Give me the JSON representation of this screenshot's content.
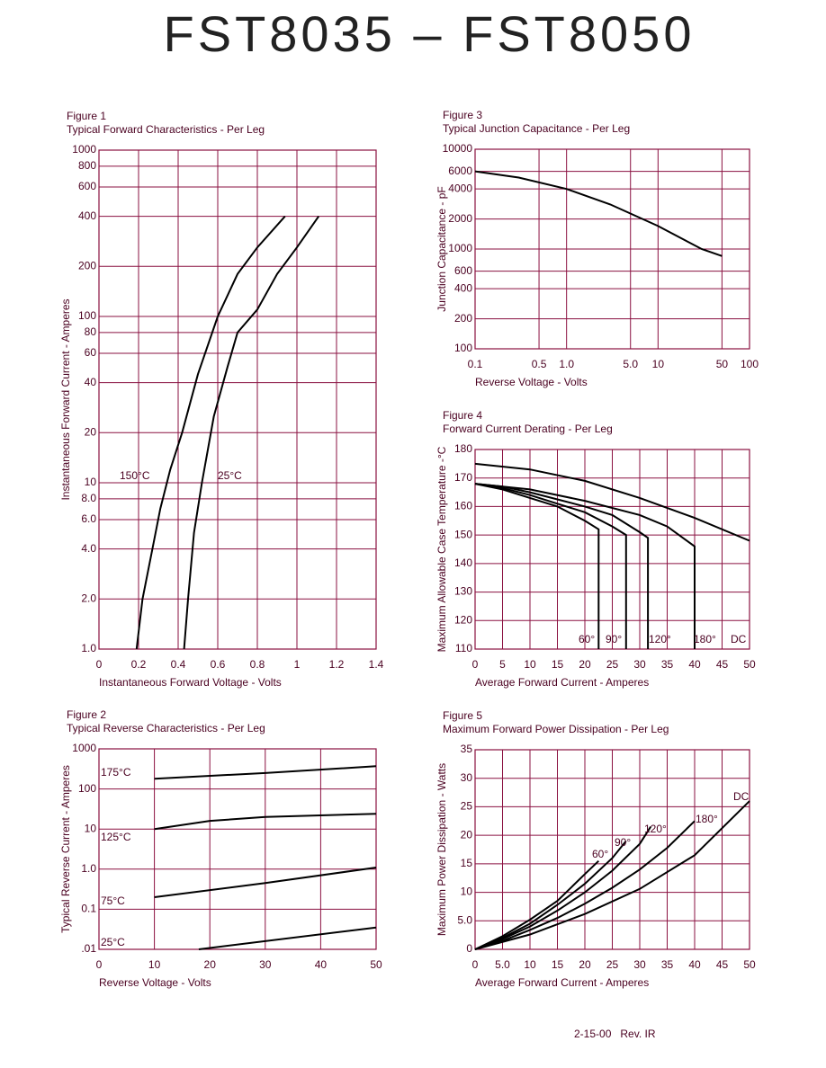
{
  "header": {
    "title": "FST8035 – FST8050"
  },
  "footer": {
    "text": "2-15-00   Rev. IR"
  },
  "chart_data": [
    {
      "type": "line",
      "title": "Figure 1",
      "subtitle": "Typical Forward Characteristics - Per Leg",
      "xlabel": "Instantaneous Forward Voltage - Volts",
      "ylabel": "Instantaneous Forward Current - Amperes",
      "xlim": [
        0,
        1.4
      ],
      "xticks": [
        0,
        0.2,
        0.4,
        0.6,
        0.8,
        1.0,
        1.2,
        1.4
      ],
      "ylim": [
        1,
        1000
      ],
      "ylog": true,
      "yticks": [
        {
          "value": 1,
          "label": "1.0"
        },
        {
          "value": 2,
          "label": "2.0"
        },
        {
          "value": 4,
          "label": "4.0"
        },
        {
          "value": 6,
          "label": "6.0"
        },
        {
          "value": 8,
          "label": "8.0"
        },
        10,
        20,
        40,
        60,
        80,
        100,
        200,
        400,
        600,
        800,
        1000
      ],
      "grid": true,
      "series": [
        {
          "name": "150°C",
          "color": "#000000",
          "x": [
            0.19,
            0.22,
            0.27,
            0.31,
            0.36,
            0.42,
            0.5,
            0.6,
            0.7,
            0.8,
            0.94
          ],
          "values": [
            1,
            2,
            4,
            7,
            12,
            20,
            45,
            100,
            180,
            260,
            400
          ]
        },
        {
          "name": "25°C",
          "color": "#000000",
          "x": [
            0.43,
            0.45,
            0.48,
            0.52,
            0.58,
            0.65,
            0.7,
            0.8,
            0.9,
            1.0,
            1.11
          ],
          "values": [
            1,
            2,
            5,
            10,
            25,
            50,
            80,
            110,
            180,
            260,
            400
          ]
        }
      ]
    },
    {
      "type": "line",
      "title": "Figure 2",
      "subtitle": "Typical Reverse Characteristics - Per Leg",
      "xlabel": "Reverse Voltage - Volts",
      "ylabel": "Typical Reverse Current - Amperes",
      "xlim": [
        0,
        50
      ],
      "xticks": [
        0,
        10,
        20,
        30,
        40,
        50
      ],
      "ylim": [
        0.01,
        1000
      ],
      "ylog": true,
      "yticks": [
        {
          "value": 0.01,
          "label": ".01"
        },
        0.1,
        {
          "value": 1,
          "label": "1.0"
        },
        10,
        100,
        1000
      ],
      "grid": true,
      "series": [
        {
          "name": "175°C",
          "color": "#000000",
          "x": [
            10,
            30,
            50
          ],
          "values": [
            180,
            250,
            370
          ]
        },
        {
          "name": "125°C",
          "color": "#000000",
          "x": [
            10,
            20,
            30,
            50
          ],
          "values": [
            10,
            16,
            20,
            24
          ]
        },
        {
          "name": "75°C",
          "color": "#000000",
          "x": [
            10,
            30,
            50
          ],
          "values": [
            0.2,
            0.45,
            1.1
          ]
        },
        {
          "name": "25°C",
          "color": "#000000",
          "x": [
            18,
            50
          ],
          "values": [
            0.01,
            0.035
          ]
        }
      ]
    },
    {
      "type": "line",
      "title": "Figure 3",
      "subtitle": "Typical Junction Capacitance - Per Leg",
      "xlabel": "Reverse Voltage - Volts",
      "ylabel": "Junction Capacitance - pF",
      "xlim": [
        0.1,
        100
      ],
      "xlog": true,
      "xticks": [
        0.1,
        0.5,
        {
          "value": 1,
          "label": "1.0"
        },
        {
          "value": 5,
          "label": "5.0"
        },
        10,
        50,
        100
      ],
      "ylim": [
        100,
        10000
      ],
      "ylog": true,
      "yticks": [
        100,
        200,
        400,
        600,
        1000,
        2000,
        4000,
        6000,
        10000
      ],
      "grid": true,
      "series": [
        {
          "color": "#000000",
          "x": [
            0.1,
            0.3,
            1,
            3,
            10,
            30,
            50
          ],
          "values": [
            6000,
            5200,
            4000,
            2800,
            1700,
            1000,
            850
          ]
        }
      ]
    },
    {
      "type": "line",
      "title": "Figure 4",
      "subtitle": "Forward Current Derating - Per Leg",
      "xlabel": "Average Forward Current - Amperes",
      "ylabel": "Maximum Allowable Case Temperature -°C",
      "xlim": [
        0,
        50
      ],
      "xticks": [
        0,
        5,
        10,
        15,
        20,
        25,
        30,
        35,
        40,
        45,
        50
      ],
      "ylim": [
        110,
        180
      ],
      "yticks": [
        110,
        120,
        130,
        140,
        150,
        160,
        170,
        180
      ],
      "grid": true,
      "series": [
        {
          "name": "60°",
          "color": "#000000",
          "x": [
            0,
            5,
            10,
            15,
            20,
            22.5,
            22.5
          ],
          "values": [
            168,
            166,
            163,
            160,
            155,
            152,
            110
          ]
        },
        {
          "name": "90°",
          "color": "#000000",
          "x": [
            0,
            5,
            10,
            15,
            20,
            25,
            27.5,
            27.5
          ],
          "values": [
            168,
            166.5,
            164,
            161,
            158,
            153,
            150,
            110
          ]
        },
        {
          "name": "120°",
          "color": "#000000",
          "x": [
            0,
            5,
            10,
            15,
            20,
            25,
            30,
            31.5,
            31.5
          ],
          "values": [
            168,
            167,
            165,
            162.5,
            160,
            157,
            151,
            149,
            110
          ]
        },
        {
          "name": "180°",
          "color": "#000000",
          "x": [
            0,
            10,
            20,
            30,
            35,
            40,
            40
          ],
          "values": [
            168,
            166,
            162,
            157,
            153,
            146,
            110
          ]
        },
        {
          "name": "DC",
          "color": "#000000",
          "x": [
            0,
            10,
            20,
            30,
            40,
            50
          ],
          "values": [
            175,
            173,
            169,
            163,
            156,
            148
          ]
        }
      ]
    },
    {
      "type": "line",
      "title": "Figure 5",
      "subtitle": "Maximum Forward Power Dissipation - Per Leg",
      "xlabel": "Average Forward Current - Amperes",
      "ylabel": "Maximum Power Dissipation - Watts",
      "xlim": [
        0,
        50
      ],
      "xticks": [
        0,
        {
          "value": 5,
          "label": "5.0"
        },
        10,
        15,
        20,
        25,
        30,
        35,
        40,
        45,
        50
      ],
      "ylim": [
        0,
        35
      ],
      "yticks": [
        0,
        {
          "value": 5,
          "label": "5.0"
        },
        10,
        15,
        20,
        25,
        30,
        35
      ],
      "grid": true,
      "series": [
        {
          "name": "60°",
          "color": "#000000",
          "x": [
            0,
            5,
            10,
            15,
            20,
            22.5
          ],
          "values": [
            0,
            2.3,
            5.2,
            8.5,
            13.2,
            15.5
          ]
        },
        {
          "name": "90°",
          "color": "#000000",
          "x": [
            0,
            5,
            10,
            15,
            20,
            25,
            27.5
          ],
          "values": [
            0,
            2,
            4.5,
            7.8,
            11.5,
            16,
            19
          ]
        },
        {
          "name": "120°",
          "color": "#000000",
          "x": [
            0,
            5,
            10,
            15,
            20,
            25,
            30,
            32
          ],
          "values": [
            0,
            1.8,
            4,
            6.8,
            10,
            13.8,
            18.5,
            21.5
          ]
        },
        {
          "name": "180°",
          "color": "#000000",
          "x": [
            0,
            5,
            10,
            15,
            20,
            25,
            30,
            35,
            40
          ],
          "values": [
            0,
            1.5,
            3.4,
            5.5,
            8,
            10.8,
            14,
            17.8,
            22.5
          ]
        },
        {
          "name": "DC",
          "color": "#000000",
          "x": [
            0,
            10,
            20,
            30,
            40,
            50
          ],
          "values": [
            0,
            2.6,
            6.2,
            10.6,
            16.5,
            26
          ]
        }
      ]
    }
  ]
}
